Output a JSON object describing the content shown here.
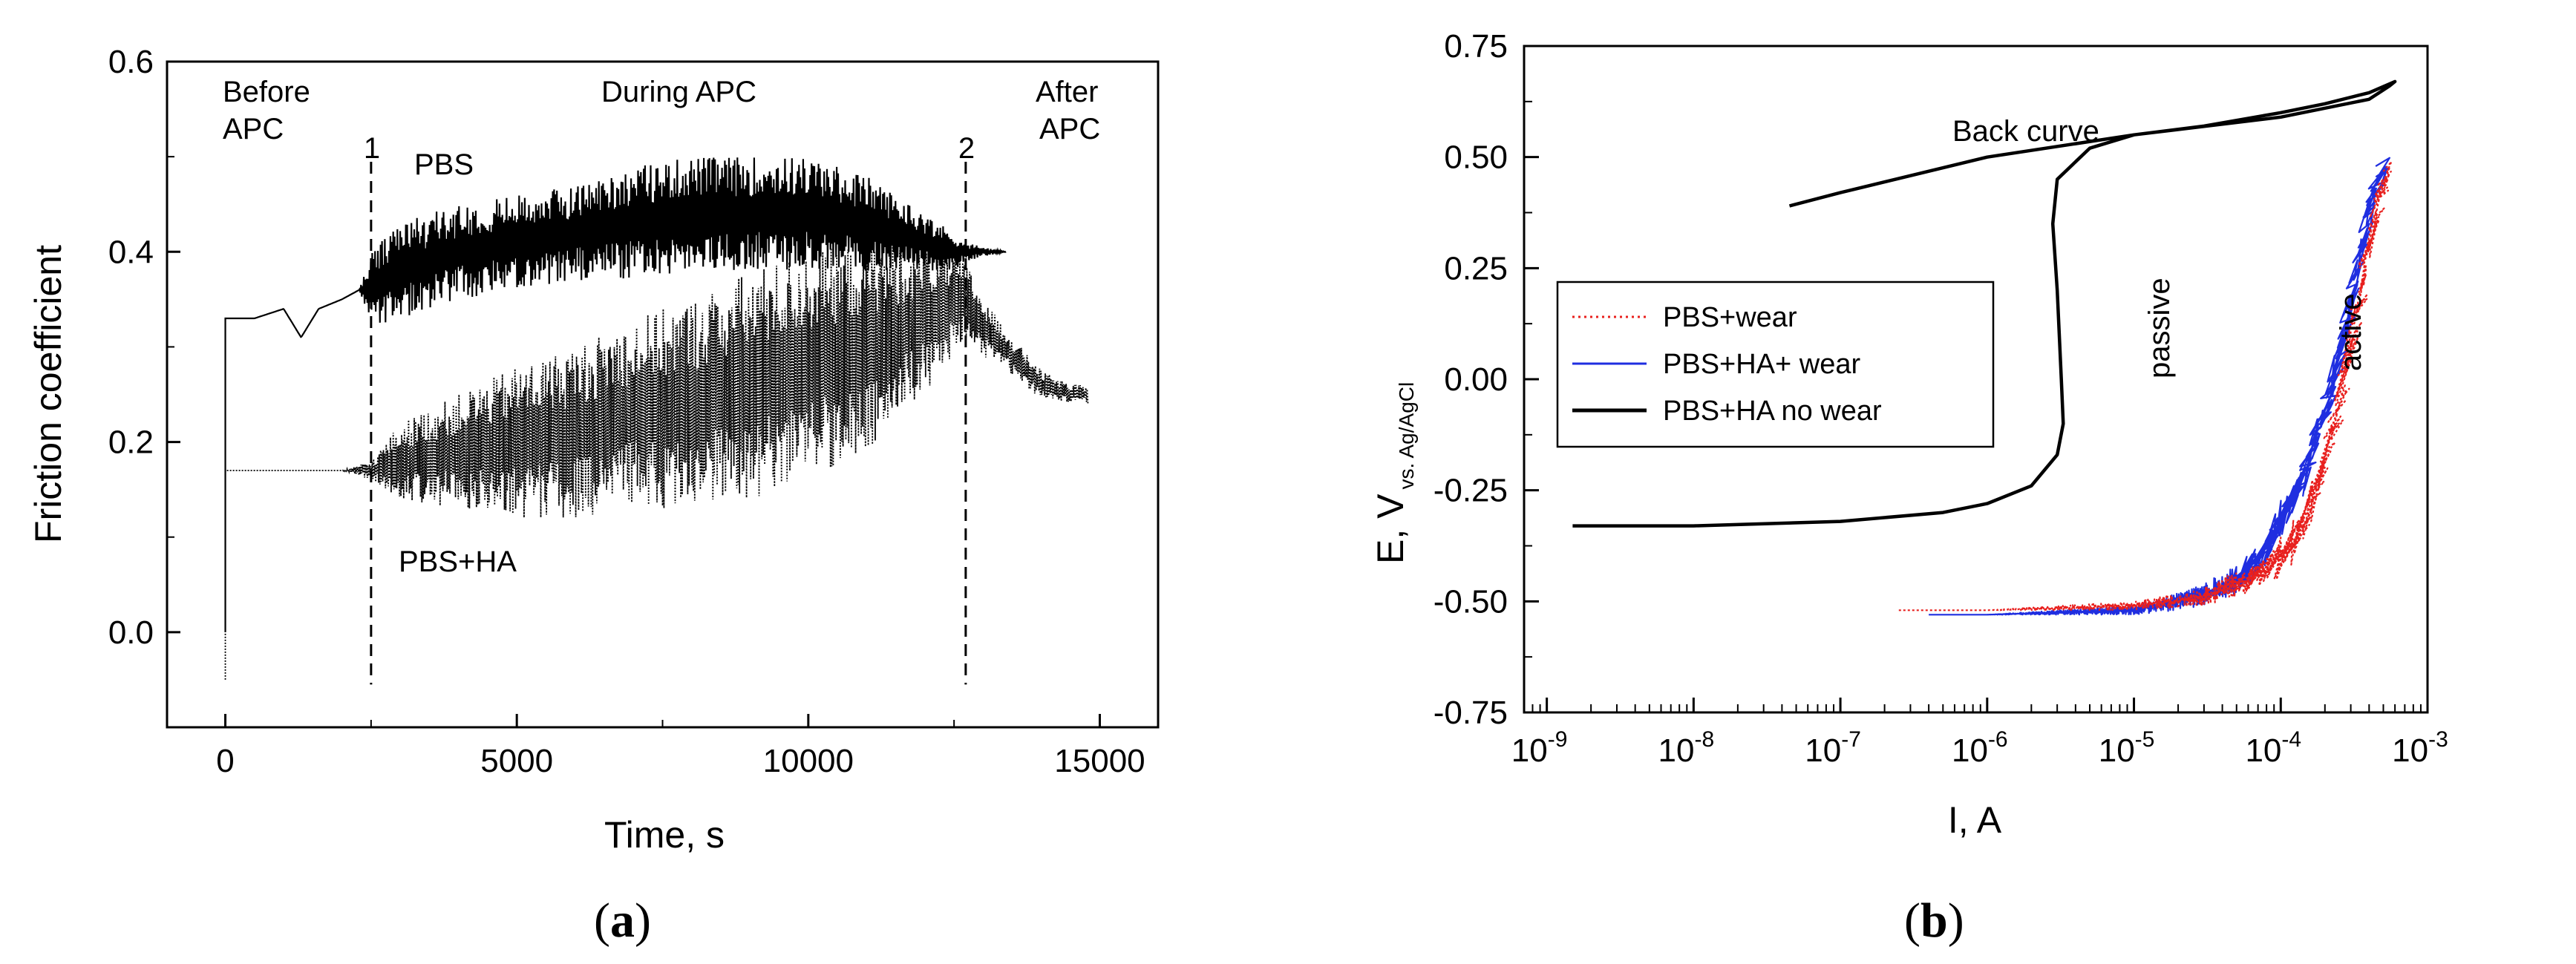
{
  "panels": [
    {
      "label": "a",
      "chart_data": {
        "type": "line",
        "title": "",
        "xlabel": "Time, s",
        "ylabel": "Friction coefficient",
        "xlim": [
          -1000,
          16000
        ],
        "ylim": [
          -0.1,
          0.6
        ],
        "xticks": [
          0,
          5000,
          10000,
          15000
        ],
        "xtick_labels": [
          "0",
          "5000",
          "10000",
          "15000"
        ],
        "yticks": [
          0.0,
          0.2,
          0.4,
          0.6
        ],
        "ytick_labels": [
          "0.0",
          "0.2",
          "0.4",
          "0.6"
        ],
        "grid": false,
        "series": [
          {
            "name": "PBS",
            "style": "solid",
            "color": "#000000",
            "x": [
              0,
              100,
              500,
              1000,
              1300,
              1400,
              1600,
              2000,
              2300,
              2500,
              3000,
              4000,
              5000,
              6000,
              7000,
              8000,
              9000,
              10000,
              11000,
              11500,
              12000,
              12500,
              12700,
              13000,
              13400
            ],
            "y": [
              0.33,
              0.33,
              0.33,
              0.34,
              0.31,
              0.32,
              0.34,
              0.35,
              0.36,
              0.36,
              0.38,
              0.4,
              0.41,
              0.42,
              0.43,
              0.44,
              0.44,
              0.44,
              0.43,
              0.42,
              0.41,
              0.4,
              0.4,
              0.4,
              0.4
            ],
            "noise": [
              0,
              0,
              0,
              0,
              0,
              0,
              0,
              0,
              0,
              0.04,
              0.05,
              0.05,
              0.05,
              0.05,
              0.06,
              0.06,
              0.06,
              0.06,
              0.05,
              0.04,
              0.03,
              0.02,
              0.01,
              0.005,
              0
            ]
          },
          {
            "name": "PBS+HA",
            "style": "dotted",
            "color": "#000000",
            "x": [
              0,
              200,
              1000,
              2000,
              2500,
              3000,
              4000,
              5000,
              6000,
              7000,
              8000,
              9000,
              10000,
              11000,
              12000,
              12700,
              13000,
              13500,
              14000,
              14500,
              14800
            ],
            "y": [
              0.17,
              0.17,
              0.17,
              0.17,
              0.17,
              0.18,
              0.19,
              0.2,
              0.21,
              0.23,
              0.24,
              0.26,
              0.28,
              0.3,
              0.33,
              0.35,
              0.32,
              0.29,
              0.26,
              0.25,
              0.25
            ],
            "noise": [
              0,
              0,
              0,
              0,
              0.01,
              0.04,
              0.06,
              0.08,
              0.09,
              0.1,
              0.11,
              0.12,
              0.12,
              0.11,
              0.08,
              0.04,
              0.03,
              0.02,
              0.015,
              0.01,
              0.01
            ]
          }
        ],
        "markers": [
          {
            "label": "1",
            "x": 2500
          },
          {
            "label": "2",
            "x": 12700
          }
        ],
        "annotations": {
          "before": [
            "Before",
            "APC"
          ],
          "during": "During APC",
          "after": [
            "After",
            "APC"
          ],
          "pbs": "PBS",
          "pbsha": "PBS+HA"
        }
      }
    },
    {
      "label": "b",
      "chart_data": {
        "type": "line",
        "title": "",
        "xlabel": "I, A",
        "ylabel_main": "E, V",
        "ylabel_sub": "vs. Ag/AgCl",
        "xscale": "log",
        "xlim": [
          7e-10,
          0.001
        ],
        "ylim": [
          -0.75,
          0.75
        ],
        "xtick_exponents": [
          -9,
          -8,
          -7,
          -6,
          -5,
          -4,
          -3
        ],
        "xtick_base": "10",
        "yticks": [
          -0.75,
          -0.5,
          -0.25,
          0.0,
          0.25,
          0.5,
          0.75
        ],
        "ytick_labels": [
          "-0.75",
          "-0.50",
          "-0.25",
          "0.00",
          "0.25",
          "0.50",
          "0.75"
        ],
        "grid": false,
        "legend_position": "middle-left",
        "series": [
          {
            "name": "PBS+wear",
            "style": "dotted",
            "color": "#e8201e",
            "x": [
              2.5e-07,
              1e-06,
              1e-05,
              3e-05,
              5e-05,
              7e-05,
              0.0001,
              0.00013,
              0.00016,
              0.0002,
              0.00025,
              0.0003,
              0.00035,
              0.0004,
              0.00045,
              0.0005,
              0.00055
            ],
            "y": [
              -0.52,
              -0.52,
              -0.51,
              -0.49,
              -0.46,
              -0.43,
              -0.4,
              -0.35,
              -0.28,
              -0.18,
              -0.05,
              0.08,
              0.2,
              0.3,
              0.38,
              0.44,
              0.48
            ],
            "noise": [
              0,
              0,
              0.01,
              0.02,
              0.03,
              0.04,
              0.05,
              0.05,
              0.05,
              0.05,
              0.05,
              0.05,
              0.05,
              0.05,
              0.04,
              0.03,
              0.02
            ]
          },
          {
            "name": "PBS+HA+ wear",
            "style": "solid",
            "color": "#1f2ee0",
            "x": [
              4e-07,
              1e-06,
              1e-05,
              2e-05,
              4e-05,
              6e-05,
              8e-05,
              0.0001,
              0.00013,
              0.00016,
              0.0002,
              0.00025,
              0.0003,
              0.00035,
              0.0004,
              0.00045,
              0.0005
            ],
            "y": [
              -0.53,
              -0.53,
              -0.52,
              -0.5,
              -0.47,
              -0.43,
              -0.38,
              -0.32,
              -0.25,
              -0.17,
              -0.07,
              0.05,
              0.17,
              0.28,
              0.37,
              0.44,
              0.48
            ],
            "noise": [
              0,
              0,
              0.01,
              0.02,
              0.03,
              0.04,
              0.05,
              0.05,
              0.05,
              0.05,
              0.05,
              0.05,
              0.05,
              0.05,
              0.05,
              0.04,
              0.03
            ]
          },
          {
            "name": "PBS+HA no wear",
            "style": "solid",
            "color": "#000000",
            "x": [
              1.5e-09,
              1e-08,
              1e-07,
              5e-07,
              1e-06,
              2e-06,
              3e-06,
              3.3e-06,
              3.2e-06,
              3e-06,
              2.8e-06,
              3e-06,
              5e-06,
              1e-05,
              3e-05,
              0.0001,
              0.0002,
              0.0004,
              0.0006,
              0.00055,
              0.0004,
              0.0001,
              1e-05,
              1e-06,
              1e-07,
              4.5e-08
            ],
            "y": [
              -0.33,
              -0.33,
              -0.32,
              -0.3,
              -0.28,
              -0.24,
              -0.17,
              -0.1,
              0.0,
              0.2,
              0.35,
              0.45,
              0.52,
              0.55,
              0.57,
              0.6,
              0.62,
              0.645,
              0.67,
              0.66,
              0.63,
              0.59,
              0.55,
              0.5,
              0.42,
              0.39
            ],
            "noise": [
              0
            ]
          }
        ],
        "annotations": {
          "back": "Back curve",
          "passive": "passive",
          "active": "active"
        }
      }
    }
  ]
}
